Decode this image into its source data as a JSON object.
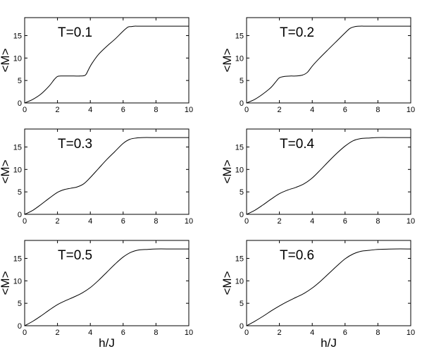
{
  "figure": {
    "xlabel": "h/J",
    "ylabel": "<M>",
    "line_color": "#000000"
  },
  "chart_data": [
    {
      "type": "line",
      "title": "",
      "annotation": "T=0.1",
      "xlabel": "",
      "ylabel": "<M>",
      "xlim": [
        0,
        10
      ],
      "ylim": [
        0,
        19
      ],
      "xticks": [
        0,
        2,
        4,
        6,
        8,
        10
      ],
      "yticks": [
        0,
        5,
        10,
        15
      ],
      "grid": false,
      "series": [
        {
          "x": [
            0,
            0.5,
            1.0,
            1.5,
            1.8,
            2.0,
            2.2,
            2.6,
            3.0,
            3.4,
            3.7,
            3.9,
            4.1,
            4.5,
            5.0,
            5.5,
            6.0,
            6.3,
            6.5,
            6.7,
            7.0,
            8.0,
            9.0,
            10.0
          ],
          "y": [
            0,
            0.8,
            2.0,
            3.8,
            5.2,
            5.9,
            6.0,
            6.0,
            6.0,
            6.0,
            6.2,
            7.5,
            8.8,
            10.8,
            12.6,
            14.2,
            16.0,
            16.9,
            17.0,
            17.1,
            17.1,
            17.1,
            17.1,
            17.1
          ]
        }
      ]
    },
    {
      "type": "line",
      "title": "",
      "annotation": "T=0.2",
      "xlabel": "",
      "ylabel": "<M>",
      "xlim": [
        0,
        10
      ],
      "ylim": [
        0,
        19
      ],
      "xticks": [
        0,
        2,
        4,
        6,
        8,
        10
      ],
      "yticks": [
        0,
        5,
        10,
        15
      ],
      "grid": false,
      "series": [
        {
          "x": [
            0,
            0.5,
            1.0,
            1.5,
            1.8,
            2.0,
            2.3,
            2.7,
            3.0,
            3.4,
            3.7,
            4.0,
            4.4,
            5.0,
            5.5,
            6.0,
            6.3,
            6.6,
            6.9,
            7.3,
            8.0,
            9.0,
            10.0
          ],
          "y": [
            0,
            0.8,
            2.0,
            3.5,
            4.8,
            5.6,
            5.9,
            6.0,
            6.0,
            6.2,
            6.8,
            8.2,
            9.8,
            12.0,
            13.8,
            15.6,
            16.6,
            17.0,
            17.1,
            17.1,
            17.1,
            17.1,
            17.1
          ]
        }
      ]
    },
    {
      "type": "line",
      "title": "",
      "annotation": "T=0.3",
      "xlabel": "",
      "ylabel": "<M>",
      "xlim": [
        0,
        10
      ],
      "ylim": [
        0,
        19
      ],
      "xticks": [
        0,
        2,
        4,
        6,
        8,
        10
      ],
      "yticks": [
        0,
        5,
        10,
        15
      ],
      "grid": false,
      "series": [
        {
          "x": [
            0,
            0.5,
            1.0,
            1.5,
            2.0,
            2.4,
            2.8,
            3.2,
            3.6,
            4.0,
            4.5,
            5.0,
            5.5,
            6.0,
            6.4,
            6.8,
            7.2,
            8.0,
            9.0,
            10.0
          ],
          "y": [
            0,
            0.9,
            2.2,
            3.6,
            4.9,
            5.5,
            5.8,
            6.1,
            6.8,
            8.2,
            10.2,
            12.2,
            14.0,
            15.8,
            16.7,
            17.0,
            17.1,
            17.1,
            17.1,
            17.1
          ]
        }
      ]
    },
    {
      "type": "line",
      "title": "",
      "annotation": "T=0.4",
      "xlabel": "",
      "ylabel": "<M>",
      "xlim": [
        0,
        10
      ],
      "ylim": [
        0,
        19
      ],
      "xticks": [
        0,
        2,
        4,
        6,
        8,
        10
      ],
      "yticks": [
        0,
        5,
        10,
        15
      ],
      "grid": false,
      "series": [
        {
          "x": [
            0,
            0.5,
            1.0,
            1.5,
            2.0,
            2.5,
            3.0,
            3.5,
            4.0,
            4.5,
            5.0,
            5.5,
            6.0,
            6.5,
            7.0,
            7.5,
            8.0,
            9.0,
            10.0
          ],
          "y": [
            0,
            0.9,
            2.1,
            3.4,
            4.6,
            5.4,
            6.0,
            6.8,
            8.1,
            9.9,
            11.8,
            13.6,
            15.2,
            16.4,
            16.9,
            17.0,
            17.1,
            17.1,
            17.1
          ]
        }
      ]
    },
    {
      "type": "line",
      "title": "",
      "annotation": "T=0.5",
      "xlabel": "h/J",
      "ylabel": "<M>",
      "xlim": [
        0,
        10
      ],
      "ylim": [
        0,
        19
      ],
      "xticks": [
        0,
        2,
        4,
        6,
        8,
        10
      ],
      "yticks": [
        0,
        5,
        10,
        15
      ],
      "grid": false,
      "series": [
        {
          "x": [
            0,
            0.5,
            1.0,
            1.5,
            2.0,
            2.5,
            3.0,
            3.5,
            4.0,
            4.5,
            5.0,
            5.5,
            6.0,
            6.5,
            7.0,
            7.5,
            8.0,
            9.0,
            10.0
          ],
          "y": [
            0,
            1.0,
            2.2,
            3.5,
            4.7,
            5.6,
            6.4,
            7.3,
            8.5,
            10.1,
            11.9,
            13.7,
            15.3,
            16.4,
            16.9,
            17.0,
            17.1,
            17.1,
            17.1
          ]
        }
      ]
    },
    {
      "type": "line",
      "title": "",
      "annotation": "T=0.6",
      "xlabel": "h/J",
      "ylabel": "<M>",
      "xlim": [
        0,
        10
      ],
      "ylim": [
        0,
        19
      ],
      "xticks": [
        0,
        2,
        4,
        6,
        8,
        10
      ],
      "yticks": [
        0,
        5,
        10,
        15
      ],
      "grid": false,
      "series": [
        {
          "x": [
            0,
            0.5,
            1.0,
            1.5,
            2.0,
            2.5,
            3.0,
            3.5,
            4.0,
            4.5,
            5.0,
            5.5,
            6.0,
            6.5,
            7.0,
            7.5,
            8.0,
            9.0,
            10.0
          ],
          "y": [
            0,
            1.0,
            2.1,
            3.3,
            4.4,
            5.4,
            6.3,
            7.2,
            8.4,
            9.9,
            11.6,
            13.3,
            14.9,
            16.0,
            16.6,
            16.8,
            17.0,
            17.1,
            17.1
          ]
        }
      ]
    }
  ]
}
